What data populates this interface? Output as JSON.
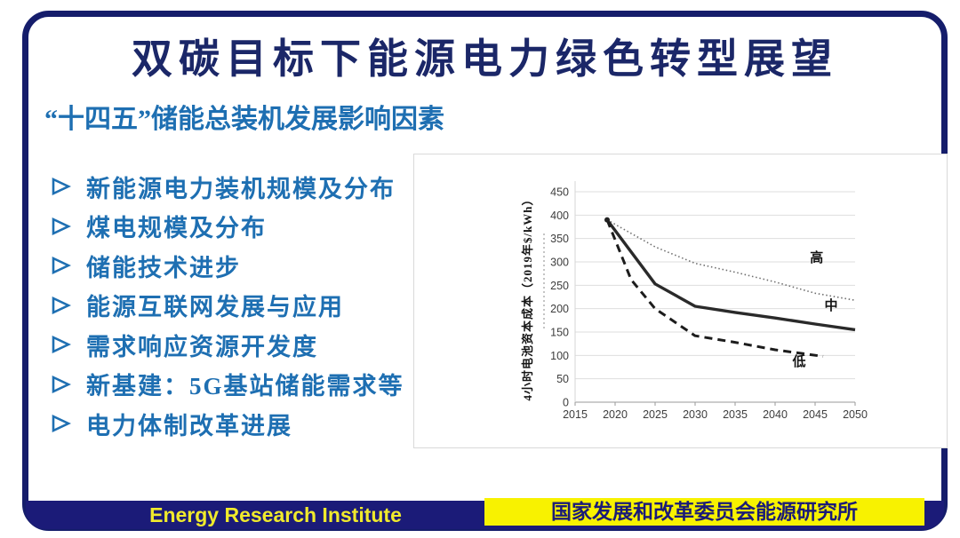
{
  "slide": {
    "title": "双碳目标下能源电力绿色转型展望",
    "subtitle": "“十四五”储能总装机发展影响因素",
    "bullets": [
      "新能源电力装机规模及分布",
      "煤电规模及分布",
      "储能技术进步",
      "能源互联网发展与应用",
      "需求响应资源开发度",
      "新基建：5G基站储能需求等",
      "电力体制改革进展"
    ]
  },
  "footer": {
    "left_text": "Energy Research Institute",
    "right_text": "国家发展和改革委员会能源研究所"
  },
  "colors": {
    "navy": "#151d6b",
    "title_navy": "#1b2768",
    "text_blue": "#1e6fb2",
    "footer_navy": "#1b1b78",
    "yellow": "#f8f200",
    "footer_yellow_text": "#f0ea2c",
    "grid_gray": "#dedede",
    "axis_gray": "#9a9a9a"
  },
  "chart_data": {
    "type": "line",
    "title": "",
    "xlabel": "",
    "ylabel": "4小时电池资本成本（2019年$/kWh）",
    "ylim": [
      0,
      450
    ],
    "ytick_step": 50,
    "xticks": [
      2015,
      2020,
      2025,
      2030,
      2035,
      2040,
      2045,
      2050
    ],
    "xlim": [
      2015,
      2050
    ],
    "grid": "horizontal",
    "legend_position": "inline-labels",
    "series": [
      {
        "name": "高",
        "style": "dotted",
        "points": [
          [
            2019,
            390
          ],
          [
            2025,
            332
          ],
          [
            2030,
            297
          ],
          [
            2035,
            278
          ],
          [
            2040,
            257
          ],
          [
            2045,
            233
          ],
          [
            2050,
            218
          ]
        ],
        "label_pos": [
          2045.2,
          300
        ]
      },
      {
        "name": "中",
        "style": "solid",
        "points": [
          [
            2019,
            390
          ],
          [
            2025,
            253
          ],
          [
            2030,
            205
          ],
          [
            2035,
            192
          ],
          [
            2040,
            180
          ],
          [
            2045,
            167
          ],
          [
            2050,
            155
          ]
        ],
        "label_pos": [
          2047.0,
          197
        ]
      },
      {
        "name": "低",
        "style": "dashed",
        "points": [
          [
            2019,
            390
          ],
          [
            2022,
            262
          ],
          [
            2025,
            200
          ],
          [
            2030,
            142
          ],
          [
            2035,
            128
          ],
          [
            2040,
            112
          ],
          [
            2046,
            98
          ]
        ],
        "label_pos": [
          2043.0,
          78
        ]
      }
    ]
  }
}
